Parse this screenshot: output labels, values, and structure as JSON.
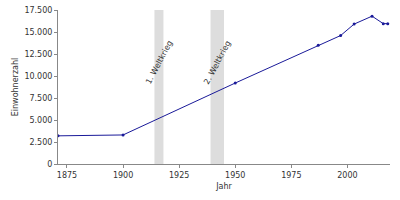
{
  "chart_data": {
    "type": "line",
    "x_label": "Jahr",
    "y_label": "Einwohnerzahl",
    "x": [
      1871,
      1900,
      1950,
      1987,
      1997,
      2003,
      2011,
      2016,
      2018
    ],
    "values": [
      3200,
      3300,
      9200,
      13500,
      14600,
      15900,
      16800,
      15950,
      15950
    ],
    "color": "#1a1a99",
    "marker": "circle",
    "xlim": [
      1871,
      2019
    ],
    "xticks": [
      1875,
      1900,
      1925,
      1950,
      1975,
      2000
    ],
    "ylim": [
      0,
      17500
    ],
    "yticks": [
      0,
      {
        "value": 2500,
        "label": "2.500"
      },
      {
        "value": 5000,
        "label": "5.000"
      },
      {
        "value": 7500,
        "label": "7.500"
      },
      {
        "value": 10000,
        "label": "10.000"
      },
      {
        "value": 12500,
        "label": "12.500"
      },
      {
        "value": 15000,
        "label": "15.000"
      },
      {
        "value": 17500,
        "label": "17.500"
      }
    ],
    "grid": false,
    "annotations": [
      {
        "text": "1. Weltkrieg",
        "x_from": 1914,
        "x_to": 1918
      },
      {
        "text": "2. Weltkrieg",
        "x_from": 1939,
        "x_to": 1945
      }
    ]
  }
}
